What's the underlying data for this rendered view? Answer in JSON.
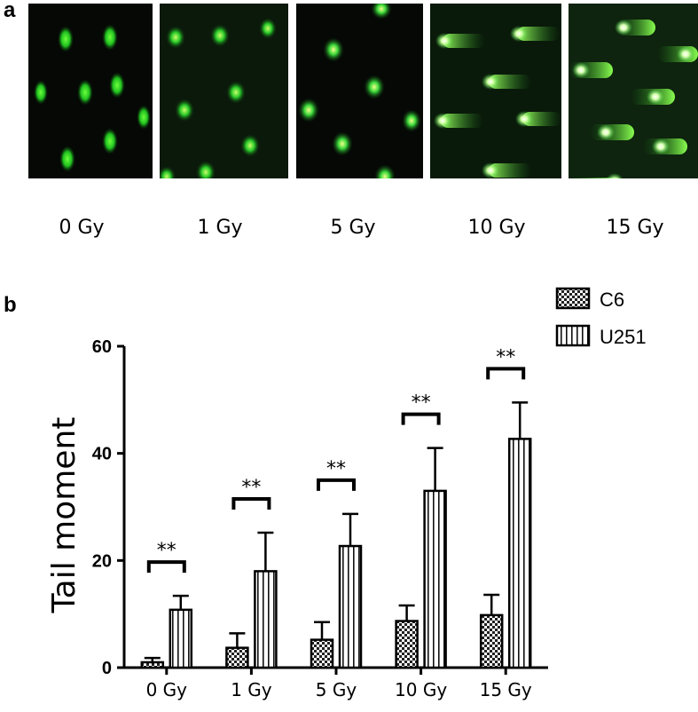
{
  "panel_a": {
    "letter": "a",
    "labels": [
      "0 Gy",
      "1 Gy",
      "5 Gy",
      "10 Gy",
      "15 Gy"
    ]
  },
  "panel_b": {
    "letter": "b"
  },
  "chart_data": {
    "type": "bar",
    "title": "",
    "xlabel": "",
    "ylabel": "Tail moment",
    "ylim": [
      0,
      60
    ],
    "yticks": [
      "0",
      "20",
      "40",
      "60"
    ],
    "categories": [
      "0 Gy",
      "1 Gy",
      "5 Gy",
      "10 Gy",
      "15 Gy"
    ],
    "series": [
      {
        "name": "C6",
        "pattern": "checker",
        "values": [
          1,
          3.7,
          5.2,
          8.7,
          9.8
        ],
        "errors": [
          0.8,
          2.7,
          3.3,
          2.9,
          3.8
        ]
      },
      {
        "name": "U251",
        "pattern": "vertical-stripes",
        "values": [
          10.8,
          18,
          22.7,
          33,
          42.7
        ],
        "errors": [
          2.6,
          7.2,
          6,
          8,
          6.8
        ]
      }
    ],
    "significance": [
      "**",
      "**",
      "**",
      "**",
      "**"
    ],
    "legend": "top-right",
    "grid": false
  }
}
